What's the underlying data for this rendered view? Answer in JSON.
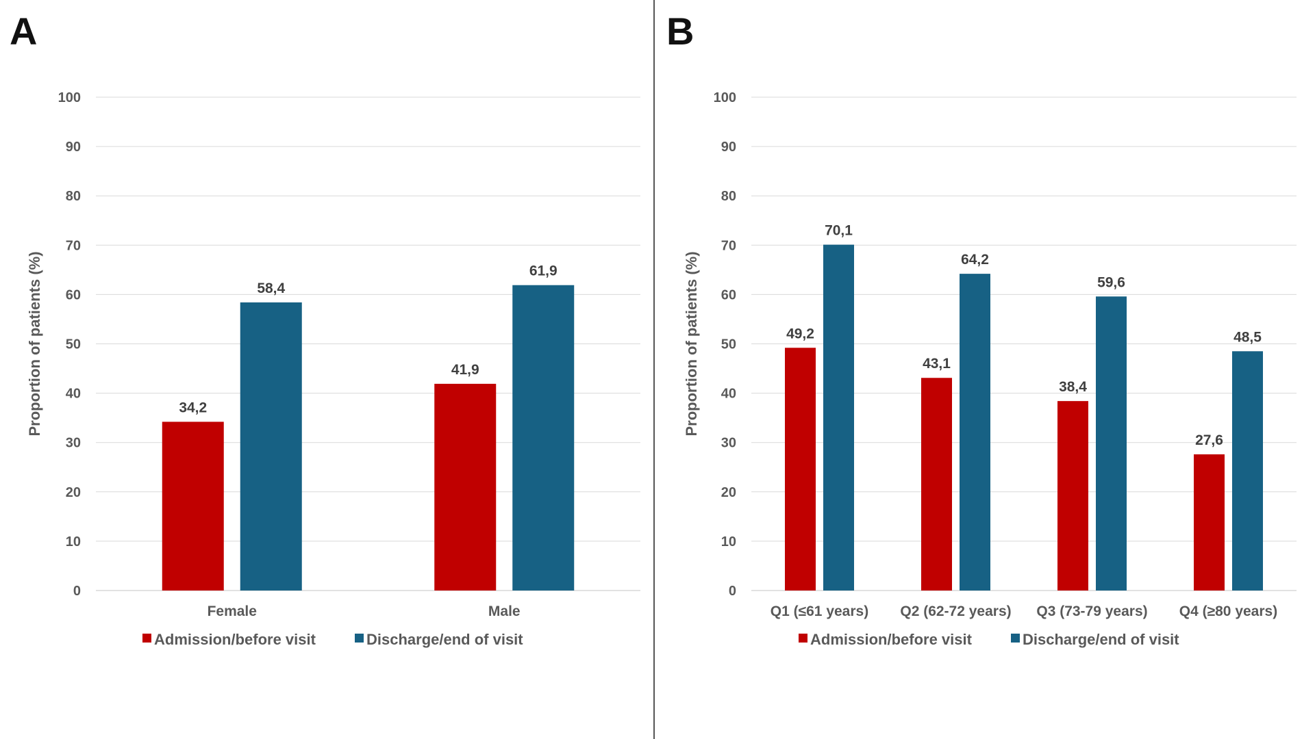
{
  "colors": {
    "admission": "#C00000",
    "discharge": "#176184",
    "grid": "#D9D9D9",
    "text": "#595959",
    "data_label": "#404040",
    "divider": "#555555"
  },
  "chart_data": [
    {
      "panel": "A",
      "type": "bar",
      "ylabel": "Proportion of patients (%)",
      "ylim": [
        0,
        100
      ],
      "yticks": [
        0,
        10,
        20,
        30,
        40,
        50,
        60,
        70,
        80,
        90,
        100
      ],
      "grid": true,
      "legend_position": "bottom",
      "categories": [
        "Female",
        "Male"
      ],
      "series": [
        {
          "name": "Admission/before visit",
          "color": "#C00000",
          "values": [
            34.2,
            41.9
          ],
          "labels": [
            "34,2",
            "41,9"
          ]
        },
        {
          "name": "Discharge/end of visit",
          "color": "#176184",
          "values": [
            58.4,
            61.9
          ],
          "labels": [
            "58,4",
            "61,9"
          ]
        }
      ]
    },
    {
      "panel": "B",
      "type": "bar",
      "ylabel": "Proportion of patients (%)",
      "ylim": [
        0,
        100
      ],
      "yticks": [
        0,
        10,
        20,
        30,
        40,
        50,
        60,
        70,
        80,
        90,
        100
      ],
      "grid": true,
      "legend_position": "bottom",
      "categories": [
        "Q1 (≤61 years)",
        "Q2 (62-72 years)",
        "Q3 (73-79 years)",
        "Q4 (≥80 years)"
      ],
      "series": [
        {
          "name": "Admission/before visit",
          "color": "#C00000",
          "values": [
            49.2,
            43.1,
            38.4,
            27.6
          ],
          "labels": [
            "49,2",
            "43,1",
            "38,4",
            "27,6"
          ]
        },
        {
          "name": "Discharge/end of visit",
          "color": "#176184",
          "values": [
            70.1,
            64.2,
            59.6,
            48.5
          ],
          "labels": [
            "70,1",
            "64,2",
            "59,6",
            "48,5"
          ]
        }
      ]
    }
  ]
}
